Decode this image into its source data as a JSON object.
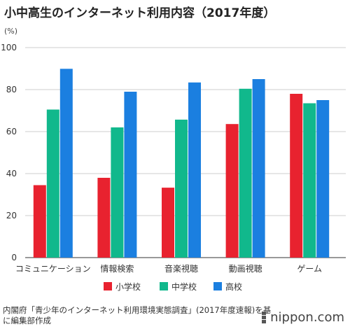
{
  "title": "小中高生のインターネット利用内容（2017年度）",
  "source": "内閣府「青少年のインターネット利用環境実態調査」(2017年度速報)を基に編集部作成",
  "brand": "nippon.com",
  "chart_data": {
    "type": "bar",
    "unit_label": "(%)",
    "categories": [
      "コミュニケーション",
      "情報検索",
      "音楽視聴",
      "動画視聴",
      "ゲーム"
    ],
    "series": [
      {
        "name": "小学校",
        "color": "#e8222f",
        "values": [
          34.5,
          38.0,
          33.3,
          63.6,
          78.0
        ]
      },
      {
        "name": "中学校",
        "color": "#11b88c",
        "values": [
          70.5,
          62.0,
          65.7,
          80.4,
          73.5
        ]
      },
      {
        "name": "高校",
        "color": "#1b7fe0",
        "values": [
          89.9,
          79.0,
          83.4,
          85.0,
          75.0
        ]
      }
    ],
    "ylim": [
      0,
      100
    ],
    "yticks": [
      0,
      20,
      40,
      60,
      80,
      100
    ],
    "grid": true,
    "legend_position": "bottom"
  }
}
